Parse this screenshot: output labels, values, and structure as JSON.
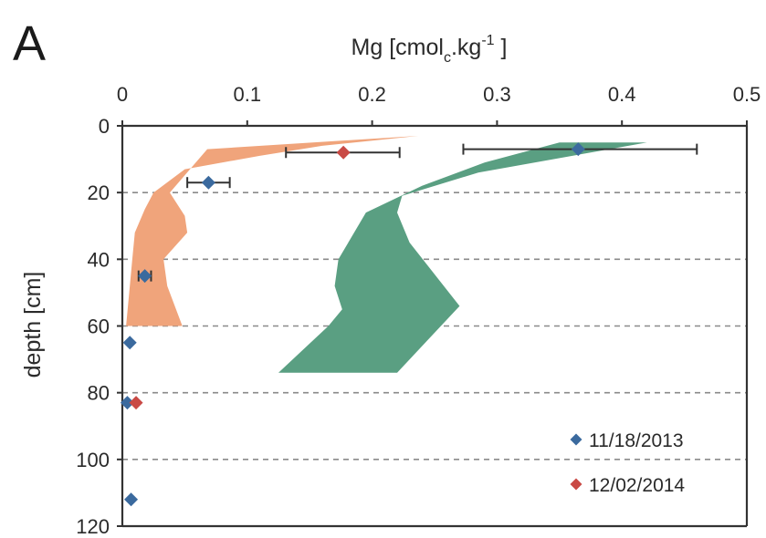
{
  "panel_label": "A",
  "chart_data": {
    "type": "scatter",
    "title": "",
    "xlabel": {
      "main": "Mg [cmol",
      "sub": "c",
      "mid": ".kg",
      "sup": "-1",
      "end": " ]"
    },
    "ylabel": "depth [cm]",
    "xlim": [
      0,
      0.5
    ],
    "ylim": [
      0,
      120
    ],
    "y_inverted": true,
    "x_axis_position": "top",
    "xticks": [
      "0",
      "0.1",
      "0.2",
      "0.3",
      "0.4",
      "0.5"
    ],
    "yticks": [
      "0",
      "20",
      "40",
      "60",
      "80",
      "100",
      "120"
    ],
    "ytick_values": [
      0,
      20,
      40,
      60,
      80,
      100,
      120
    ],
    "xtick_values": [
      0,
      0.1,
      0.2,
      0.3,
      0.4,
      0.5
    ],
    "grid": {
      "horizontal_dashed": [
        20,
        40,
        60,
        80,
        100
      ]
    },
    "bands": [
      {
        "color": "#f0a47b",
        "polygon": [
          [
            0.237,
            3
          ],
          [
            0.068,
            7
          ],
          [
            0.038,
            20
          ],
          [
            0.05,
            27
          ],
          [
            0.052,
            32
          ],
          [
            0.033,
            40
          ],
          [
            0.036,
            48
          ],
          [
            0.048,
            60
          ],
          [
            0.003,
            60
          ],
          [
            0.006,
            48
          ],
          [
            0.008,
            40
          ],
          [
            0.01,
            32
          ],
          [
            0.018,
            25
          ],
          [
            0.025,
            20
          ],
          [
            0.05,
            13
          ],
          [
            0.11,
            9
          ],
          [
            0.16,
            6
          ],
          [
            0.237,
            3
          ]
        ]
      },
      {
        "color": "#5a9f82",
        "polygon": [
          [
            0.42,
            5
          ],
          [
            0.285,
            14
          ],
          [
            0.224,
            21
          ],
          [
            0.22,
            26
          ],
          [
            0.23,
            35
          ],
          [
            0.27,
            54
          ],
          [
            0.22,
            74
          ],
          [
            0.125,
            74
          ],
          [
            0.165,
            60
          ],
          [
            0.176,
            55
          ],
          [
            0.17,
            48
          ],
          [
            0.173,
            40
          ],
          [
            0.195,
            26
          ],
          [
            0.24,
            18
          ],
          [
            0.29,
            11
          ],
          [
            0.35,
            5
          ],
          [
            0.42,
            5
          ]
        ]
      }
    ],
    "series": [
      {
        "name": "11/18/2013",
        "color": "#3b6a9e",
        "points": [
          {
            "x": 0.365,
            "y": 7,
            "xerr_low": 0.273,
            "xerr_high": 0.46
          },
          {
            "x": 0.069,
            "y": 17,
            "xerr_low": 0.052,
            "xerr_high": 0.086
          },
          {
            "x": 0.018,
            "y": 45,
            "xerr_low": 0.013,
            "xerr_high": 0.023
          },
          {
            "x": 0.006,
            "y": 65
          },
          {
            "x": 0.004,
            "y": 83
          },
          {
            "x": 0.007,
            "y": 112
          }
        ]
      },
      {
        "name": "12/02/2014",
        "color": "#c94a45",
        "points": [
          {
            "x": 0.177,
            "y": 8,
            "xerr_low": 0.131,
            "xerr_high": 0.222
          },
          {
            "x": 0.011,
            "y": 83
          }
        ]
      }
    ],
    "legend": {
      "position": "bottom-right",
      "entries": [
        "11/18/2013",
        "12/02/2014"
      ]
    }
  }
}
